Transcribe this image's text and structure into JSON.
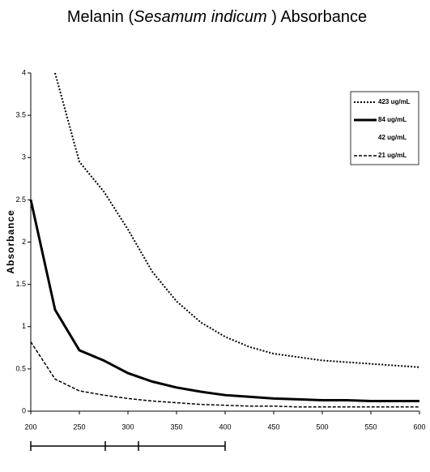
{
  "chart_data": {
    "type": "line",
    "title_parts": [
      "Melanin (",
      "Sesamum indicum",
      " ) Absorbance"
    ],
    "y_label": "Absorbance",
    "x": [
      200,
      225,
      250,
      275,
      300,
      325,
      350,
      375,
      400,
      425,
      450,
      475,
      500,
      525,
      550,
      575,
      600
    ],
    "series": [
      {
        "name": "423 ug/mL",
        "color": "#000000",
        "width": 2,
        "dash": "2,2",
        "values": [
          null,
          4.0,
          2.95,
          2.6,
          2.15,
          1.65,
          1.3,
          1.05,
          0.88,
          0.76,
          0.68,
          0.64,
          0.6,
          0.58,
          0.56,
          0.54,
          0.52
        ]
      },
      {
        "name": "84 ug/mL",
        "color": "#000000",
        "width": 3,
        "dash": "none",
        "values": [
          2.5,
          1.2,
          0.72,
          0.6,
          0.45,
          0.35,
          0.28,
          0.23,
          0.19,
          0.17,
          0.15,
          0.14,
          0.13,
          0.13,
          0.12,
          0.12,
          0.12
        ]
      },
      {
        "name": "42 ug/mL",
        "color": "#ffffff",
        "width": 1,
        "dash": "none",
        "values": [
          null,
          null,
          null,
          null,
          null,
          null,
          null,
          null,
          null,
          null,
          null,
          null,
          null,
          null,
          null,
          null,
          null
        ]
      },
      {
        "name": "21 ug/mL",
        "color": "#000000",
        "width": 1.5,
        "dash": "4,2",
        "values": [
          0.82,
          0.38,
          0.24,
          0.19,
          0.15,
          0.12,
          0.1,
          0.08,
          0.07,
          0.06,
          0.06,
          0.05,
          0.05,
          0.05,
          0.05,
          0.05,
          0.05
        ]
      }
    ],
    "xlim": [
      200,
      600
    ],
    "xticks": [
      200,
      250,
      300,
      350,
      400,
      450,
      500,
      550,
      600
    ],
    "ylim": [
      0,
      4
    ],
    "yticks": [
      0,
      0.5,
      1,
      1.5,
      2,
      2.5,
      3,
      3.5,
      4
    ],
    "legend": "top-right"
  }
}
